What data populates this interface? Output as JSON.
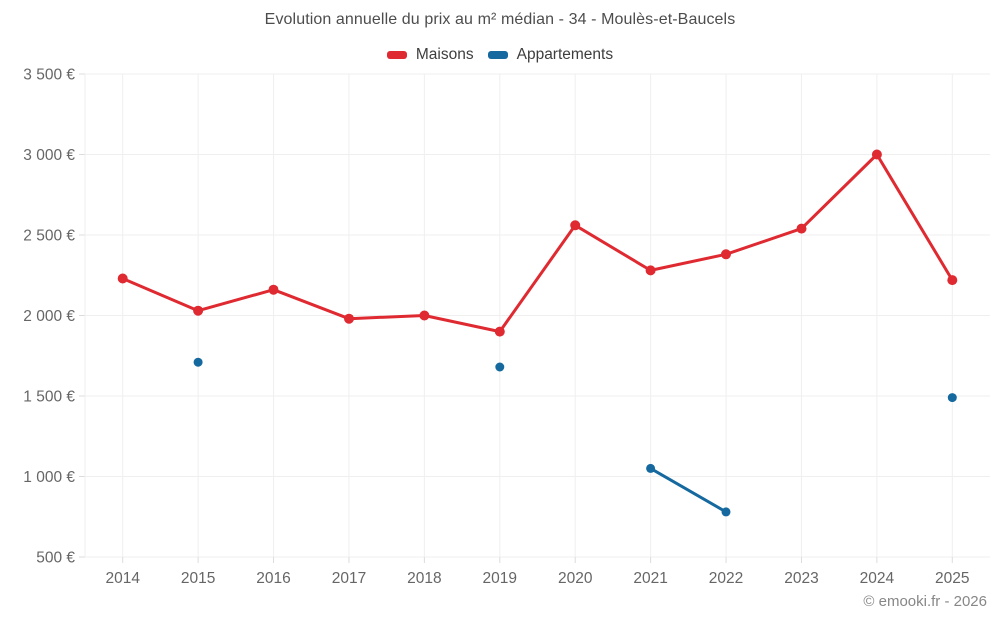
{
  "chart_data": {
    "type": "line",
    "title": "Evolution annuelle du prix au m² médian - 34 - Moulès-et-Baucels",
    "categories": [
      "2014",
      "2015",
      "2016",
      "2017",
      "2018",
      "2019",
      "2020",
      "2021",
      "2022",
      "2023",
      "2024",
      "2025"
    ],
    "series": [
      {
        "name": "Maisons",
        "color": "#df2a31",
        "values": [
          2230,
          2030,
          2160,
          1980,
          2000,
          1900,
          2560,
          2280,
          2380,
          2540,
          3000,
          2220
        ]
      },
      {
        "name": "Appartements",
        "color": "#15699f",
        "values": [
          null,
          1710,
          null,
          null,
          null,
          1680,
          null,
          1050,
          780,
          null,
          null,
          1490
        ]
      }
    ],
    "xlabel": "",
    "ylabel": "",
    "ylim": [
      500,
      3500
    ],
    "y_ticks": [
      {
        "value": 500,
        "label": "500 €"
      },
      {
        "value": 1000,
        "label": "1 000 €"
      },
      {
        "value": 1500,
        "label": "1 500 €"
      },
      {
        "value": 2000,
        "label": "2 000 €"
      },
      {
        "value": 2500,
        "label": "2 500 €"
      },
      {
        "value": 3000,
        "label": "3 000 €"
      },
      {
        "value": 3500,
        "label": "3 500 €"
      }
    ],
    "grid": true,
    "legend_position": "top",
    "watermark": "© emooki.fr - 2026",
    "colors": {
      "grid": "#efefef",
      "tick": "#dcdcdc",
      "axis_text": "#666666",
      "title_text": "#4d4d4d",
      "legend_text": "#3e3e3e",
      "watermark_text": "#878787",
      "background": "#ffffff"
    }
  }
}
